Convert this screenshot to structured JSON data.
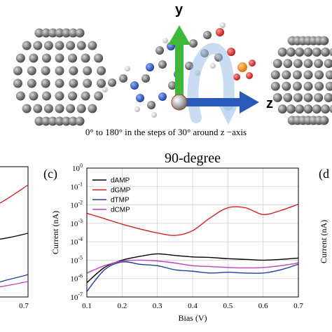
{
  "figure": {
    "caption": "0° to 180° in the steps of 30° around z −axis",
    "axis_y": "y",
    "axis_z": "z"
  },
  "panels": {
    "left_partial": {
      "x_tick_last": "0.7"
    },
    "center": {
      "panel_label": "(c)",
      "title": "90-degree"
    },
    "right_partial": {
      "panel_label": "(d",
      "ylabel_fragment": "Current (nA)"
    }
  },
  "colors": {
    "dAMP": "#000000",
    "dGMP": "#d62020",
    "dTMP": "#1f3f9f",
    "dCMP": "#c040c0"
  },
  "chart_data": {
    "type": "line",
    "title": "90-degree",
    "xlabel": "Bias (V)",
    "ylabel": "Current (nA)",
    "xlim": [
      0.1,
      0.7
    ],
    "ylim_log10": [
      -7,
      0
    ],
    "y_scale": "log",
    "x_ticks": [
      "0.1",
      "0.2",
      "0.3",
      "0.4",
      "0.5",
      "0.6",
      "0.7"
    ],
    "y_ticks": [
      "10",
      "10",
      "10",
      "10",
      "10",
      "10",
      "10",
      "10"
    ],
    "y_tick_exponents": [
      "-7",
      "-6",
      "-5",
      "-4",
      "-3",
      "-2",
      "-1",
      "0"
    ],
    "legend_position": "top-left",
    "series": [
      {
        "name": "dAMP",
        "x": [
          0.1,
          0.15,
          0.2,
          0.25,
          0.3,
          0.35,
          0.4,
          0.45,
          0.5,
          0.55,
          0.6,
          0.65,
          0.7
        ],
        "y": [
          6e-07,
          4e-06,
          1e-05,
          1.6e-05,
          2.2e-05,
          1.8e-05,
          1.5e-05,
          1.4e-05,
          1.2e-05,
          1.1e-05,
          1e-05,
          1.1e-05,
          1.3e-05
        ]
      },
      {
        "name": "dGMP",
        "x": [
          0.1,
          0.15,
          0.2,
          0.25,
          0.3,
          0.35,
          0.4,
          0.45,
          0.5,
          0.55,
          0.6,
          0.65,
          0.7
        ],
        "y": [
          0.0035,
          0.0018,
          0.0009,
          0.0005,
          0.0003,
          0.00022,
          0.0004,
          0.002,
          0.007,
          0.007,
          0.003,
          0.005,
          0.011
        ]
      },
      {
        "name": "dTMP",
        "x": [
          0.1,
          0.15,
          0.2,
          0.25,
          0.3,
          0.35,
          0.4,
          0.45,
          0.5,
          0.55,
          0.6,
          0.65,
          0.7
        ],
        "y": [
          2e-07,
          3e-06,
          8e-06,
          6e-06,
          5e-06,
          3e-06,
          2.5e-06,
          2e-06,
          2.2e-06,
          2e-06,
          2e-06,
          3e-06,
          6e-06
        ]
      },
      {
        "name": "dCMP",
        "x": [
          0.1,
          0.15,
          0.2,
          0.25,
          0.3,
          0.35,
          0.4,
          0.45,
          0.5,
          0.55,
          0.6,
          0.65,
          0.7
        ],
        "y": [
          2e-06,
          5e-06,
          9e-06,
          1e-05,
          9e-06,
          7e-06,
          5e-06,
          4.5e-06,
          4e-06,
          3.8e-06,
          4e-06,
          5e-06,
          7e-06
        ]
      }
    ]
  }
}
